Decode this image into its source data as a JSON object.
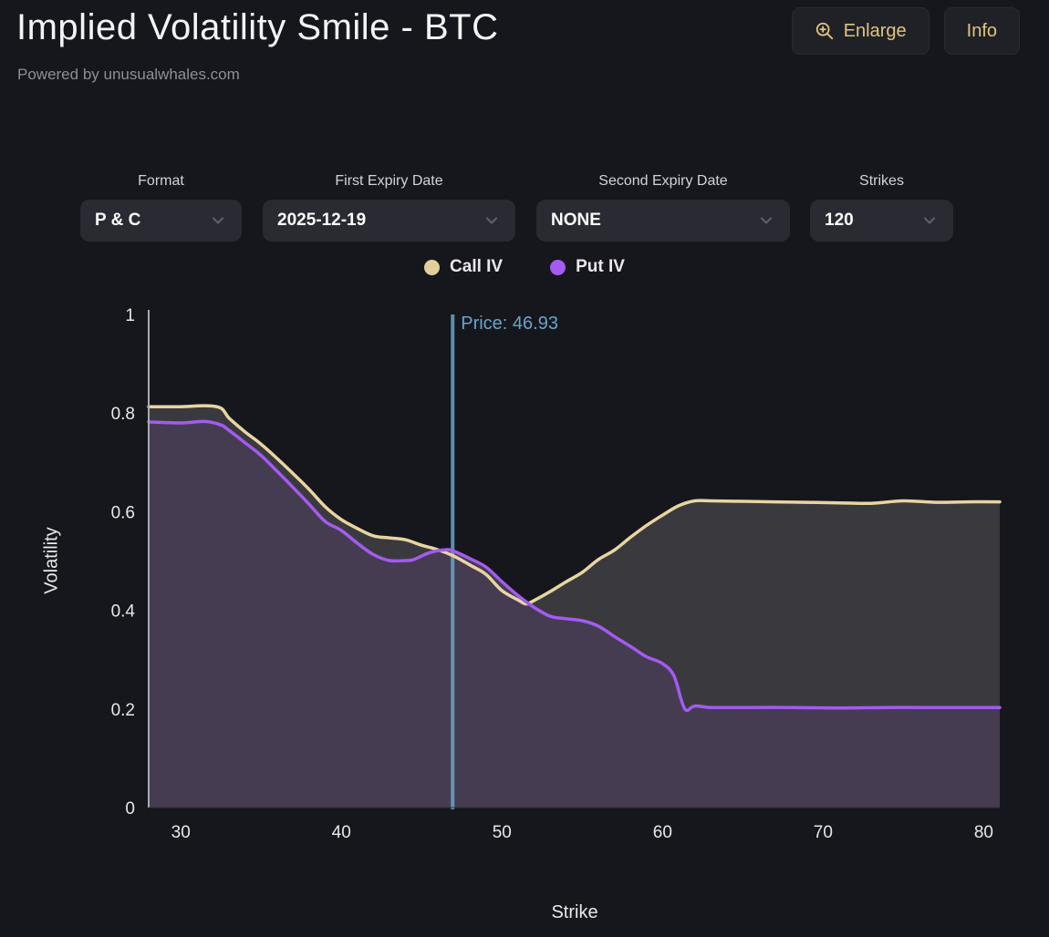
{
  "header": {
    "title": "Implied Volatility Smile - BTC",
    "subtitle": "Powered by unusualwhales.com",
    "enlarge_label": "Enlarge",
    "info_label": "Info"
  },
  "controls": [
    {
      "label": "Format",
      "value": "P & C"
    },
    {
      "label": "First Expiry Date",
      "value": "2025-12-19"
    },
    {
      "label": "Second Expiry Date",
      "value": "NONE"
    },
    {
      "label": "Strikes",
      "value": "120"
    }
  ],
  "legend": [
    {
      "label": "Call IV",
      "color": "#e3cf9c"
    },
    {
      "label": "Put IV",
      "color": "#a35bf0"
    }
  ],
  "chart_data": {
    "type": "area",
    "title": "Implied Volatility Smile - BTC",
    "xlabel": "Strike",
    "ylabel": "Volatility",
    "xlim": [
      28,
      81
    ],
    "ylim": [
      0,
      1
    ],
    "x_ticks": [
      30,
      40,
      50,
      60,
      70,
      80
    ],
    "y_ticks": [
      0,
      0.2,
      0.4,
      0.6,
      0.8,
      1
    ],
    "grid": false,
    "legend_position": "top-center",
    "price_line": {
      "label": "Price: 46.93",
      "value": 46.93,
      "color": "#67a5c9"
    },
    "series": [
      {
        "name": "Call IV",
        "line_color": "#e8d5a0",
        "fill_color": "#3a3a3e",
        "points": [
          [
            28,
            0.813
          ],
          [
            30,
            0.813
          ],
          [
            31.5,
            0.815
          ],
          [
            32.5,
            0.81
          ],
          [
            33,
            0.79
          ],
          [
            34,
            0.762
          ],
          [
            35,
            0.737
          ],
          [
            36,
            0.708
          ],
          [
            37,
            0.677
          ],
          [
            38,
            0.645
          ],
          [
            39,
            0.61
          ],
          [
            40,
            0.584
          ],
          [
            41,
            0.566
          ],
          [
            42,
            0.551
          ],
          [
            43,
            0.547
          ],
          [
            44,
            0.543
          ],
          [
            45,
            0.532
          ],
          [
            46,
            0.523
          ],
          [
            47,
            0.51
          ],
          [
            48,
            0.492
          ],
          [
            49,
            0.473
          ],
          [
            50,
            0.44
          ],
          [
            51,
            0.421
          ],
          [
            51.5,
            0.413
          ],
          [
            52,
            0.42
          ],
          [
            53,
            0.438
          ],
          [
            54,
            0.458
          ],
          [
            55,
            0.477
          ],
          [
            56,
            0.503
          ],
          [
            57,
            0.522
          ],
          [
            58,
            0.548
          ],
          [
            59,
            0.572
          ],
          [
            60,
            0.593
          ],
          [
            61,
            0.612
          ],
          [
            62,
            0.622
          ],
          [
            63,
            0.622
          ],
          [
            65,
            0.621
          ],
          [
            67,
            0.62
          ],
          [
            69,
            0.619
          ],
          [
            71,
            0.618
          ],
          [
            73,
            0.617
          ],
          [
            75,
            0.622
          ],
          [
            77,
            0.619
          ],
          [
            79,
            0.62
          ],
          [
            81,
            0.62
          ]
        ]
      },
      {
        "name": "Put IV",
        "line_color": "#a35bf0",
        "fill_color": "#453c52",
        "points": [
          [
            28,
            0.782
          ],
          [
            30,
            0.78
          ],
          [
            31.5,
            0.783
          ],
          [
            32.5,
            0.776
          ],
          [
            33,
            0.765
          ],
          [
            34,
            0.74
          ],
          [
            35,
            0.714
          ],
          [
            36,
            0.682
          ],
          [
            37,
            0.649
          ],
          [
            38,
            0.615
          ],
          [
            39,
            0.58
          ],
          [
            40,
            0.562
          ],
          [
            41,
            0.536
          ],
          [
            42,
            0.513
          ],
          [
            43,
            0.501
          ],
          [
            44,
            0.501
          ],
          [
            44.5,
            0.503
          ],
          [
            45.5,
            0.517
          ],
          [
            46.5,
            0.523
          ],
          [
            47,
            0.52
          ],
          [
            48,
            0.505
          ],
          [
            49,
            0.488
          ],
          [
            50,
            0.458
          ],
          [
            51,
            0.43
          ],
          [
            52,
            0.406
          ],
          [
            53,
            0.388
          ],
          [
            54,
            0.383
          ],
          [
            55,
            0.379
          ],
          [
            56,
            0.368
          ],
          [
            57,
            0.347
          ],
          [
            58,
            0.327
          ],
          [
            59,
            0.306
          ],
          [
            60,
            0.292
          ],
          [
            60.7,
            0.268
          ],
          [
            61.2,
            0.215
          ],
          [
            61.5,
            0.197
          ],
          [
            62,
            0.206
          ],
          [
            63,
            0.203
          ],
          [
            65,
            0.203
          ],
          [
            68,
            0.203
          ],
          [
            71,
            0.202
          ],
          [
            74,
            0.203
          ],
          [
            77,
            0.203
          ],
          [
            81,
            0.203
          ]
        ]
      }
    ]
  }
}
